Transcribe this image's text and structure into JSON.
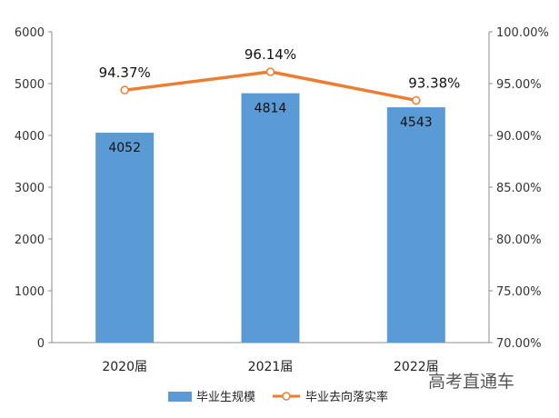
{
  "chart_data": {
    "type": "bar+line",
    "categories": [
      "2020届",
      "2021届",
      "2022届"
    ],
    "series": [
      {
        "name": "毕业生规模",
        "type": "bar",
        "axis": "left",
        "color": "#5B9BD5",
        "values": [
          4052,
          4814,
          4543
        ],
        "labels": [
          "4052",
          "4814",
          "4543"
        ]
      },
      {
        "name": "毕业去向落实率",
        "type": "line",
        "axis": "right",
        "color": "#ED7D31",
        "values": [
          94.37,
          96.14,
          93.38
        ],
        "labels": [
          "94.37%",
          "96.14%",
          "93.38%"
        ]
      }
    ],
    "y_left": {
      "min": 0,
      "max": 6000,
      "ticks": [
        "0",
        "1000",
        "2000",
        "3000",
        "4000",
        "5000",
        "6000"
      ]
    },
    "y_right": {
      "min": 70,
      "max": 100,
      "ticks": [
        "70.00%",
        "75.00%",
        "80.00%",
        "85.00%",
        "90.00%",
        "95.00%",
        "100.00%"
      ]
    },
    "legend": {
      "placement": "bottom",
      "items": [
        "毕业生规模",
        "毕业去向落实率"
      ]
    },
    "grid": false
  },
  "watermark": "高考直通车"
}
